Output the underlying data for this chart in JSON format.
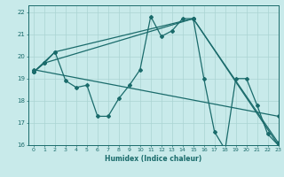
{
  "title": "",
  "xlabel": "Humidex (Indice chaleur)",
  "xlim": [
    -0.5,
    23
  ],
  "ylim": [
    16,
    22.3
  ],
  "yticks": [
    16,
    17,
    18,
    19,
    20,
    21,
    22
  ],
  "xticks": [
    0,
    1,
    2,
    3,
    4,
    5,
    6,
    7,
    8,
    9,
    10,
    11,
    12,
    13,
    14,
    15,
    16,
    17,
    18,
    19,
    20,
    21,
    22,
    23
  ],
  "bg_color": "#c8eaea",
  "grid_color": "#aad4d2",
  "line_color": "#1a6b6b",
  "line1_x": [
    0,
    1,
    2,
    3,
    4,
    5,
    6,
    7,
    8,
    9,
    10,
    11,
    12,
    13,
    14,
    15,
    16,
    17,
    18,
    19,
    20,
    21,
    22,
    23
  ],
  "line1_y": [
    19.3,
    19.7,
    20.2,
    18.9,
    18.6,
    18.7,
    17.3,
    17.3,
    18.1,
    18.7,
    19.4,
    21.8,
    20.9,
    21.15,
    21.7,
    21.7,
    19.0,
    16.6,
    15.8,
    19.0,
    19.0,
    17.8,
    16.5,
    16.0
  ],
  "line2_x": [
    0,
    2,
    15,
    23
  ],
  "line2_y": [
    19.3,
    20.2,
    21.7,
    16.0
  ],
  "line3_x": [
    0,
    1,
    15,
    23
  ],
  "line3_y": [
    19.3,
    19.7,
    21.7,
    16.1
  ],
  "line4_x": [
    0,
    23
  ],
  "line4_y": [
    19.4,
    17.3
  ]
}
